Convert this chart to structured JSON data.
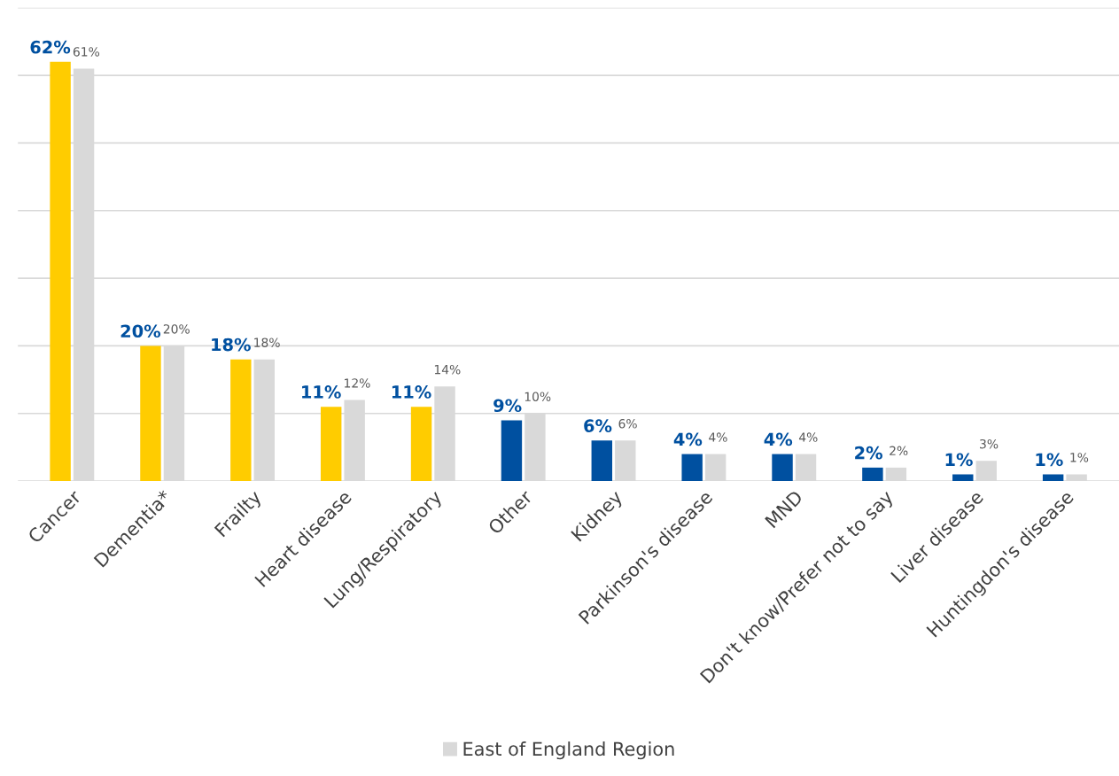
{
  "chart_data": {
    "type": "bar",
    "categories": [
      "Cancer",
      "Dementia*",
      "Frailty",
      "Heart disease",
      "Lung/Respiratory",
      "Other",
      "Kidney",
      "Parkinson's disease",
      "MND",
      "Don't know/Prefer not to say",
      "Liver disease",
      "Huntingdon's disease"
    ],
    "series": [
      {
        "colors": [
          "#ffcc00",
          "#ffcc00",
          "#ffcc00",
          "#ffcc00",
          "#ffcc00",
          "#0050a0",
          "#0050a0",
          "#0050a0",
          "#0050a0",
          "#0050a0",
          "#0050a0",
          "#0050a0"
        ],
        "values": [
          62,
          20,
          18,
          11,
          11,
          9,
          6,
          4,
          4,
          2,
          1,
          1
        ],
        "value_labels": [
          "62%",
          "20%",
          "18%",
          "11%",
          "11%",
          "9%",
          "6%",
          "4%",
          "4%",
          "2%",
          "1%",
          "1%"
        ]
      },
      {
        "name": "East of England Region",
        "color": "#d9d9d9",
        "values": [
          61,
          20,
          18,
          12,
          14,
          10,
          6,
          4,
          4,
          2,
          3,
          1
        ],
        "value_labels": [
          "61%",
          "20%",
          "18%",
          "12%",
          "14%",
          "10%",
          "6%",
          "4%",
          "4%",
          "2%",
          "3%",
          "1%"
        ]
      }
    ],
    "ylim": [
      0,
      70
    ],
    "yticks": [
      {
        "value": 0,
        "label": null
      },
      {
        "value": 10,
        "label": null
      },
      {
        "value": 20,
        "label": null
      },
      {
        "value": 30,
        "label": null
      },
      {
        "value": 40,
        "label": null
      },
      {
        "value": 50,
        "label": null
      },
      {
        "value": 60,
        "label": null
      },
      {
        "value": 70,
        "label": null
      }
    ],
    "grid": "y",
    "legend": "bottom"
  }
}
